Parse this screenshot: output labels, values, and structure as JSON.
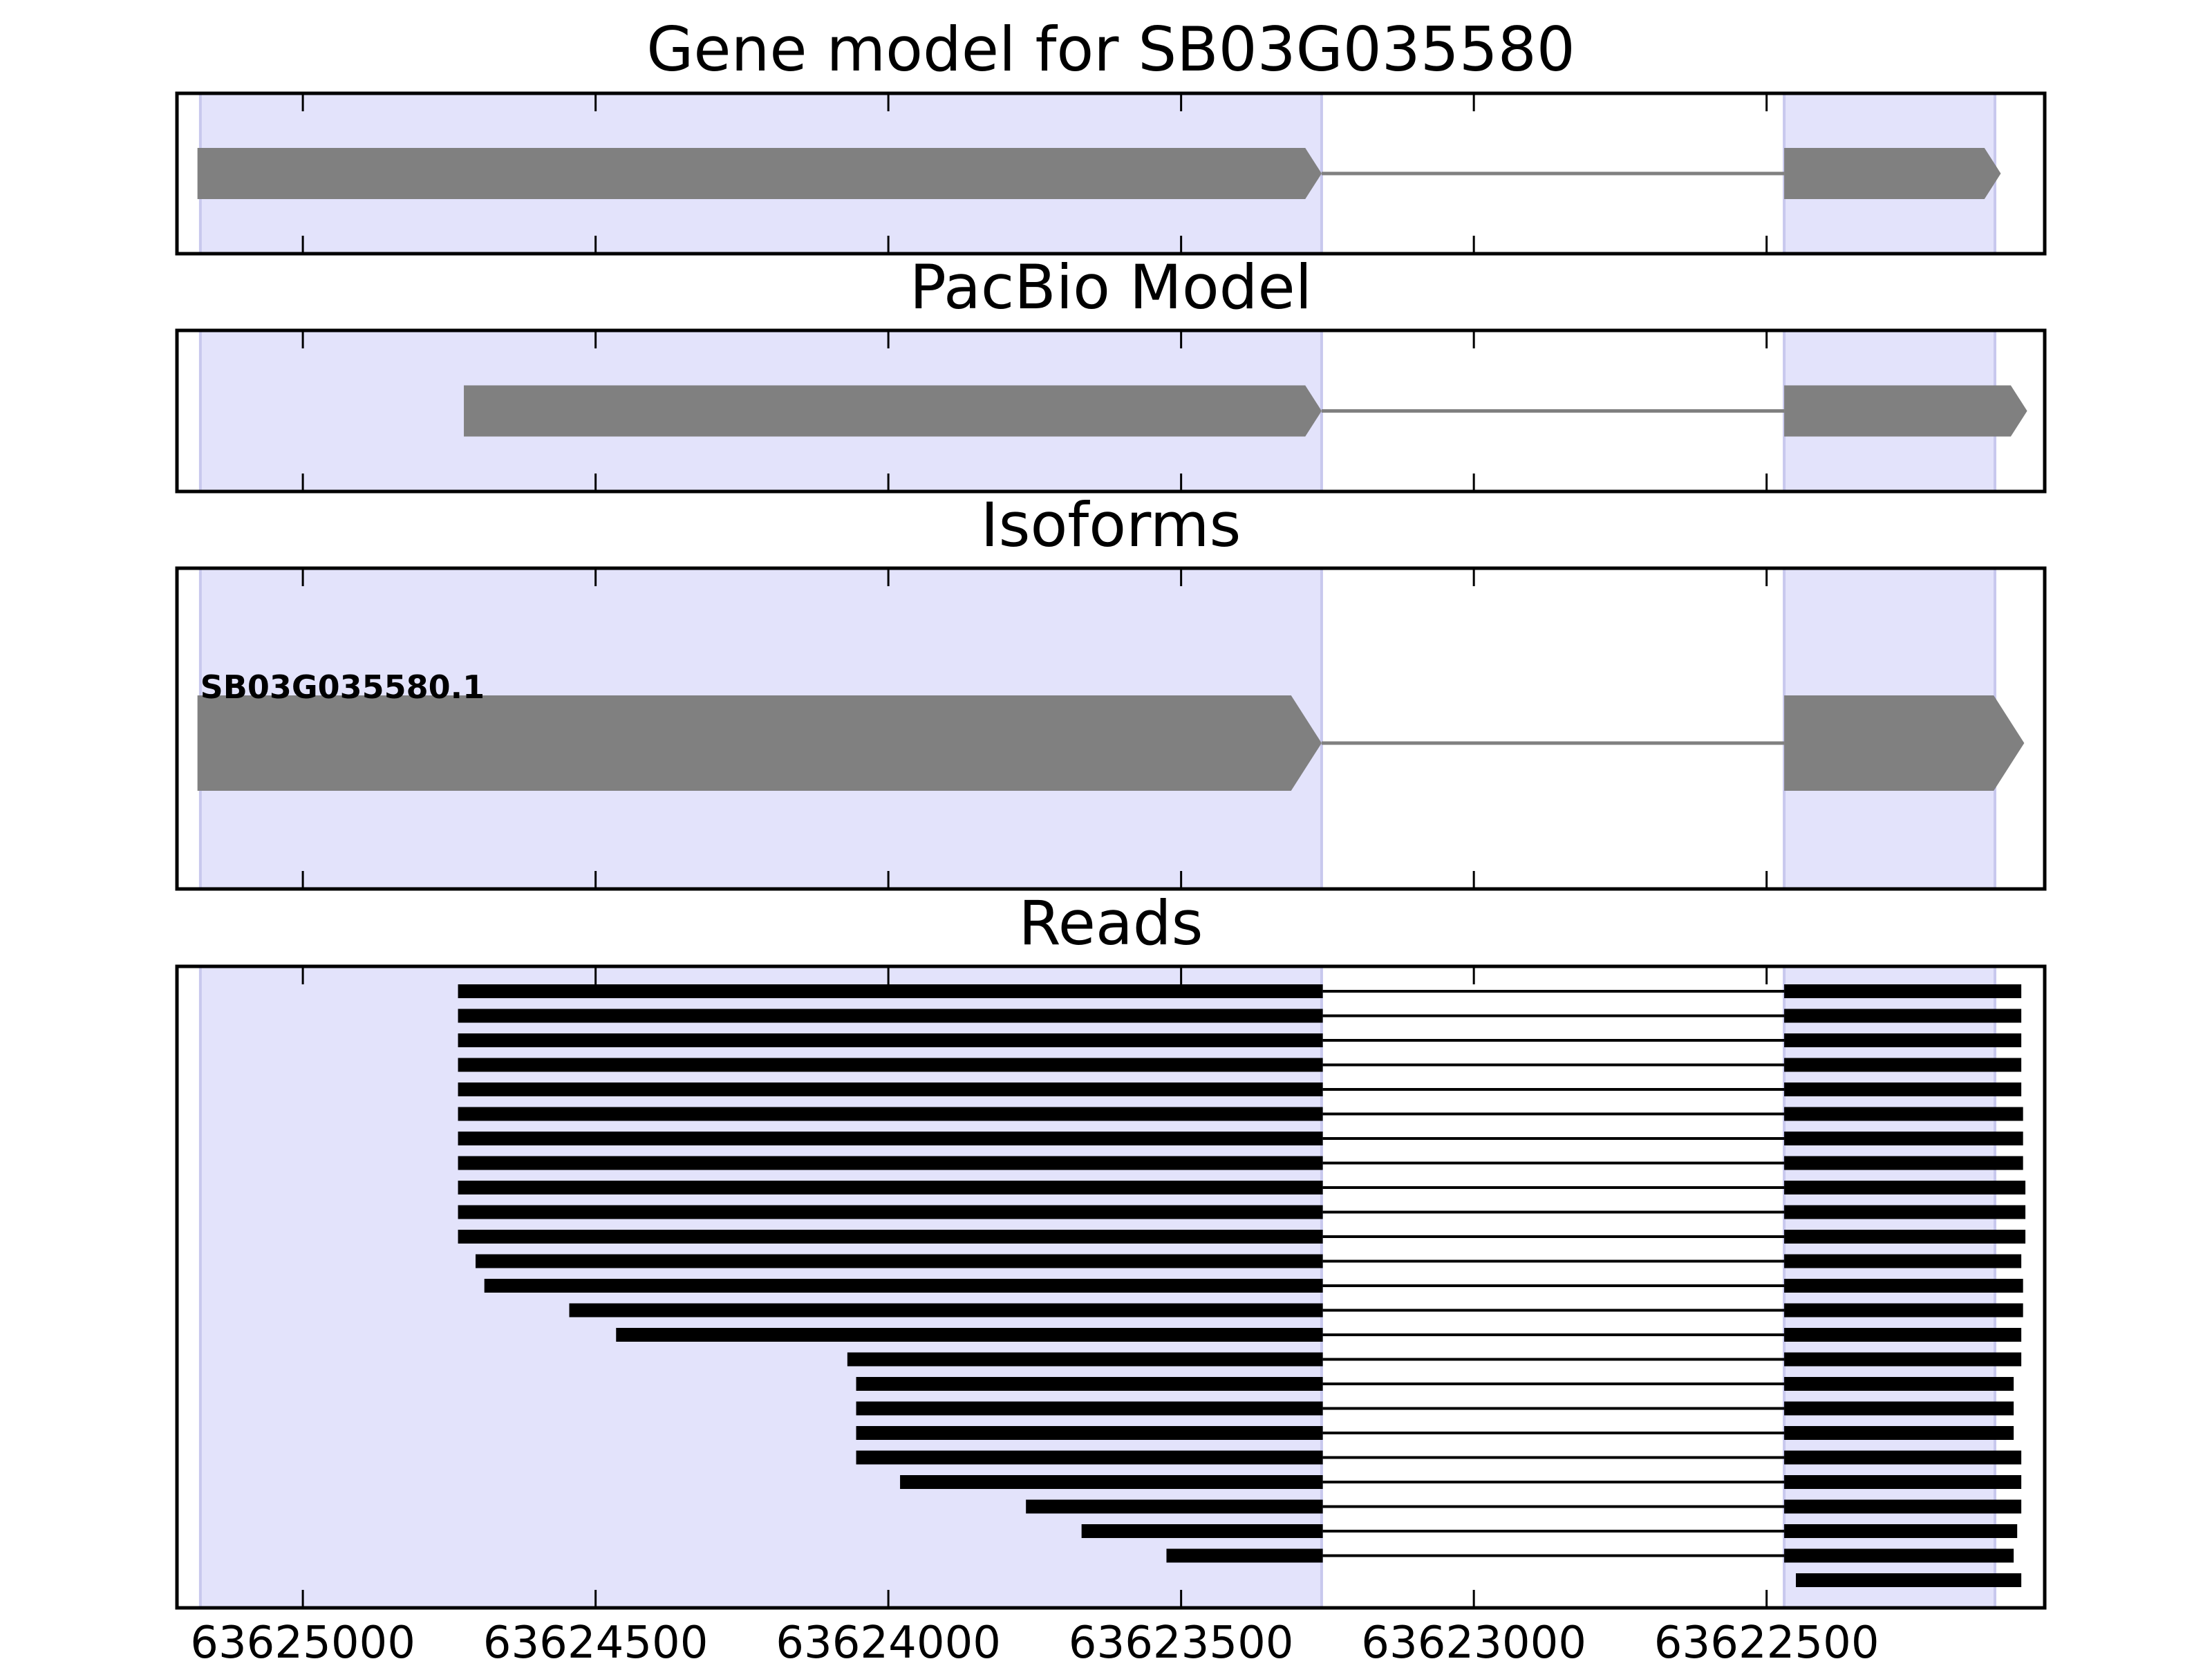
{
  "chart_data": {
    "type": "gene-structure",
    "x_axis": {
      "direction": "descending",
      "domain": [
        63625215,
        63622025
      ],
      "ticks": [
        "63625000",
        "63624500",
        "63624000",
        "63623500",
        "63623000",
        "63622500"
      ],
      "tick_values": [
        63625000,
        63624500,
        63624000,
        63623500,
        63623000,
        63622500
      ]
    },
    "shaded_regions": [
      {
        "start": 63625175,
        "end": 63623260
      },
      {
        "start": 63622470,
        "end": 63622110
      }
    ],
    "colors": {
      "exon": "#808080",
      "intron": "#808080",
      "shade": "#e3e3fb",
      "shade_edge": "#c8c8ee",
      "read": "#000000"
    },
    "panels": [
      {
        "title": "Gene model for SB03G035580",
        "exons": [
          [
            63625180,
            63623260
          ],
          [
            63622470,
            63622100
          ]
        ]
      },
      {
        "title": "PacBio Model",
        "exons": [
          [
            63624725,
            63623260
          ],
          [
            63622470,
            63622055
          ]
        ]
      },
      {
        "title": "Isoforms",
        "isoforms": [
          {
            "label": "SB03G035580.1",
            "exons": [
              [
                63625180,
                63623260
              ],
              [
                63622470,
                63622060
              ]
            ]
          }
        ]
      },
      {
        "title": "Reads",
        "reads": [
          [
            63624735,
            63623258,
            63622470,
            63622065
          ],
          [
            63624735,
            63623258,
            63622470,
            63622065
          ],
          [
            63624735,
            63623258,
            63622470,
            63622065
          ],
          [
            63624735,
            63623258,
            63622470,
            63622065
          ],
          [
            63624735,
            63623258,
            63622470,
            63622065
          ],
          [
            63624735,
            63623258,
            63622470,
            63622062
          ],
          [
            63624735,
            63623258,
            63622470,
            63622062
          ],
          [
            63624735,
            63623258,
            63622470,
            63622062
          ],
          [
            63624735,
            63623258,
            63622470,
            63622058
          ],
          [
            63624735,
            63623258,
            63622470,
            63622058
          ],
          [
            63624735,
            63623258,
            63622470,
            63622058
          ],
          [
            63624705,
            63623258,
            63622470,
            63622065
          ],
          [
            63624690,
            63623258,
            63622470,
            63622062
          ],
          [
            63624545,
            63623258,
            63622470,
            63622062
          ],
          [
            63624465,
            63623258,
            63622470,
            63622065
          ],
          [
            63624070,
            63623258,
            63622470,
            63622065
          ],
          [
            63624055,
            63623258,
            63622470,
            63622078
          ],
          [
            63624055,
            63623258,
            63622470,
            63622078
          ],
          [
            63624055,
            63623258,
            63622470,
            63622078
          ],
          [
            63624055,
            63623258,
            63622470,
            63622065
          ],
          [
            63623980,
            63623258,
            63622470,
            63622065
          ],
          [
            63623765,
            63623258,
            63622470,
            63622065
          ],
          [
            63623670,
            63623258,
            63622470,
            63622072
          ],
          [
            63623525,
            63623258,
            63622470,
            63622078
          ],
          [
            63622450,
            63622065
          ]
        ]
      }
    ]
  }
}
